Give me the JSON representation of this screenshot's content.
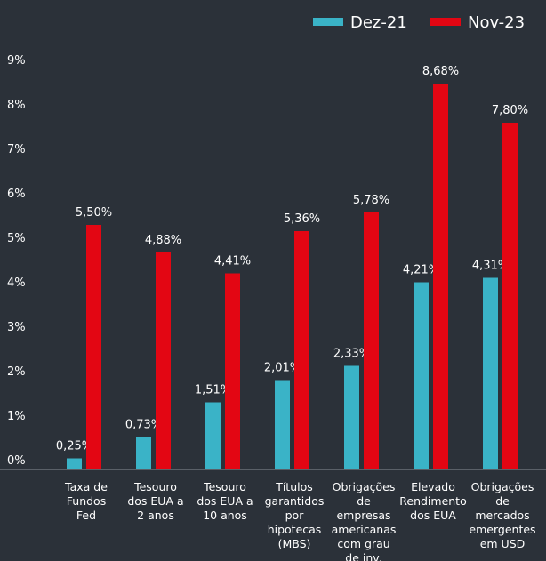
{
  "chart_data": {
    "type": "bar",
    "categories": [
      "Taxa de Fundos Fed",
      "Tesouro dos EUA a 2 anos",
      "Tesouro dos EUA a 10 anos",
      "Títulos garantidos por hipotecas (MBS)",
      "Obrigações de empresas americanas com grau de inv.",
      "Elevado Rendimento dos EUA",
      "Obrigações de mercados emergentes em USD"
    ],
    "series": [
      {
        "name": "Dez-21",
        "color": "#3ab3c7",
        "values": [
          0.25,
          0.73,
          1.51,
          2.01,
          2.33,
          4.21,
          4.31
        ],
        "value_labels": [
          "0,25%",
          "0,73%",
          "1,51%",
          "2,01%",
          "2,33%",
          "4,21%",
          "4,31%"
        ]
      },
      {
        "name": "Nov-23",
        "color": "#e30613",
        "values": [
          5.5,
          4.88,
          4.41,
          5.36,
          5.78,
          8.68,
          7.8
        ],
        "value_labels": [
          "5,50%",
          "4,88%",
          "4,41%",
          "5,36%",
          "5,78%",
          "8,68%",
          "7,80%"
        ]
      }
    ],
    "ylim": [
      0,
      9
    ],
    "yticks": [
      {
        "value": 0,
        "label": "0%"
      },
      {
        "value": 1,
        "label": "1%"
      },
      {
        "value": 2,
        "label": "2%"
      },
      {
        "value": 3,
        "label": "3%"
      },
      {
        "value": 4,
        "label": "4%"
      },
      {
        "value": 5,
        "label": "5%"
      },
      {
        "value": 6,
        "label": "6%"
      },
      {
        "value": 7,
        "label": "7%"
      },
      {
        "value": 8,
        "label": "8%"
      },
      {
        "value": 9,
        "label": "9%"
      }
    ],
    "legend": "top-right"
  }
}
